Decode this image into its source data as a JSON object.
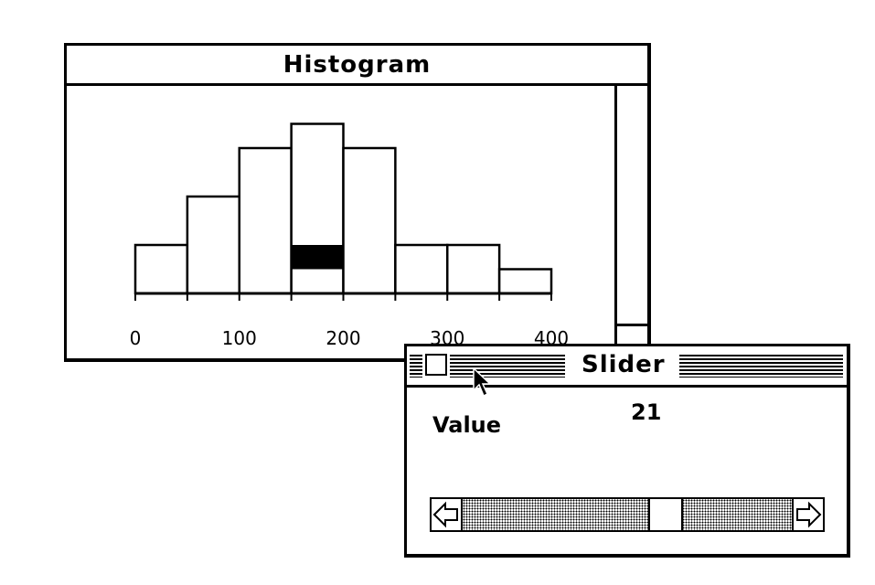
{
  "histogram_window": {
    "title": "Histogram"
  },
  "chart_data": {
    "type": "bar",
    "bin_edges": [
      0,
      50,
      100,
      150,
      200,
      250,
      300,
      350,
      400
    ],
    "values": [
      2,
      4,
      6,
      7,
      6,
      2,
      2,
      1
    ],
    "highlight": {
      "bin": 3,
      "from": 1,
      "to": 2
    },
    "xlim": [
      0,
      400
    ],
    "x_tick_labels": [
      "0",
      "100",
      "200",
      "300",
      "400"
    ],
    "x_tick_values": [
      0,
      100,
      200,
      300,
      400
    ],
    "grid": false,
    "title": "",
    "xlabel": "",
    "ylabel": ""
  },
  "slider_window": {
    "title": "Slider",
    "value_label": "Value",
    "value": "21",
    "scroll_fraction": 0.63
  },
  "icons": {
    "close_box": "close-box-icon",
    "left_arrow": "left-arrow-icon",
    "right_arrow": "right-arrow-icon",
    "cursor": "arrow-cursor-icon"
  }
}
